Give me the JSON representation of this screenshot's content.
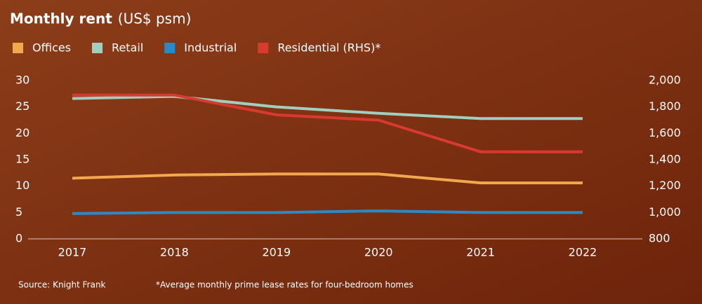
{
  "chart_data": {
    "type": "line",
    "title": "Monthly rent",
    "subtitle": "(US$ psm)",
    "categories": [
      "2017",
      "2018",
      "2019",
      "2020",
      "2021",
      "2022"
    ],
    "series": [
      {
        "name": "Offices",
        "color": "#f2a84e",
        "values": [
          11.5,
          12.1,
          12.3,
          12.3,
          10.6,
          10.6
        ]
      },
      {
        "name": "Retail",
        "color": "#9fcfbf",
        "values": [
          26.6,
          27,
          25,
          23.8,
          22.8,
          22.8
        ]
      },
      {
        "name": "Industrial",
        "color": "#2a8ac8",
        "values": [
          4.8,
          5,
          5,
          5.3,
          5,
          5
        ]
      },
      {
        "name": "Residential (RHS)*",
        "color": "#d83a30",
        "axis": "y2",
        "values": [
          1890,
          1890,
          1740,
          1700,
          1460,
          1460
        ]
      }
    ],
    "ylim": [
      0,
      30
    ],
    "yticks": [
      0,
      5,
      10,
      15,
      20,
      25,
      30
    ],
    "y2lim": [
      800,
      2000
    ],
    "y2ticks": [
      800,
      {
        "value": 1000,
        "label": "1,000"
      },
      {
        "value": 1200,
        "label": "1,200"
      },
      {
        "value": 1400,
        "label": "1,400"
      },
      {
        "value": 1600,
        "label": "1,600"
      },
      {
        "value": 1800,
        "label": "1,800"
      },
      {
        "value": 2000,
        "label": "2,000"
      }
    ],
    "source": "Source: Knight Frank",
    "footnote": "*Average monthly prime lease rates for four-bedroom homes"
  }
}
